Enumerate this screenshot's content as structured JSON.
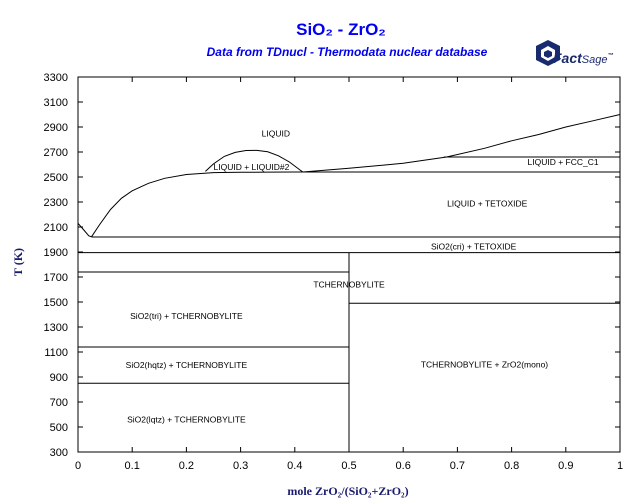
{
  "header": {
    "title": "SiO₂ - ZrO₂",
    "subtitle": "Data from TDnucl - Thermodata nuclear database",
    "logo": {
      "fact": "Fact",
      "sage": "Sage",
      "tm": "™",
      "color": "#1a2a6e",
      "icon": "factsage-logo-icon"
    }
  },
  "colors": {
    "title": "#0000ee",
    "axis_title": "#1a1a6e",
    "lines": "#000000"
  },
  "chart_data": {
    "type": "line",
    "title": "SiO₂ - ZrO₂",
    "subtitle": "Data from TDnucl - Thermodata nuclear database",
    "xlabel": "mole ZrO₂/(SiO₂+ZrO₂)",
    "ylabel": "T (K)",
    "xlim": [
      0,
      1
    ],
    "ylim": [
      300,
      3300
    ],
    "x_ticks": [
      0,
      0.1,
      0.2,
      0.3,
      0.4,
      0.5,
      0.6,
      0.7,
      0.8,
      0.9,
      1
    ],
    "x_tick_labels": [
      "0",
      "0.1",
      "0.2",
      "0.3",
      "0.4",
      "0.5",
      "0.6",
      "0.7",
      "0.8",
      "0.9",
      "1"
    ],
    "y_ticks": [
      300,
      500,
      700,
      900,
      1100,
      1300,
      1500,
      1700,
      1900,
      2100,
      2300,
      2500,
      2700,
      2900,
      3100,
      3300
    ],
    "y_tick_labels": [
      "300",
      "500",
      "700",
      "900",
      "1100",
      "1300",
      "1500",
      "1700",
      "1900",
      "2100",
      "2300",
      "2500",
      "2700",
      "2900",
      "3100",
      "3300"
    ],
    "grid": false,
    "series": [
      {
        "x": [
          0,
          0.01,
          0.02,
          0.025
        ],
        "y": [
          2130,
          2080,
          2030,
          2022
        ]
      },
      {
        "x": [
          0.025,
          0.04,
          0.06,
          0.08,
          0.1,
          0.13,
          0.16,
          0.2,
          0.25,
          0.3,
          0.35,
          0.4,
          0.415
        ],
        "y": [
          2022,
          2120,
          2240,
          2330,
          2390,
          2450,
          2490,
          2520,
          2535,
          2538,
          2539,
          2540,
          2540
        ]
      },
      {
        "x": [
          0.235,
          0.25,
          0.27,
          0.29,
          0.31,
          0.33,
          0.35,
          0.37,
          0.39,
          0.41,
          0.415
        ],
        "y": [
          2545,
          2605,
          2665,
          2697,
          2712,
          2713,
          2702,
          2670,
          2620,
          2555,
          2540
        ]
      },
      {
        "x": [
          0.415,
          0.5,
          0.6,
          0.68,
          0.75,
          0.8,
          0.85,
          0.9,
          0.95,
          1.0
        ],
        "y": [
          2540,
          2570,
          2610,
          2660,
          2730,
          2790,
          2840,
          2900,
          2950,
          3000
        ]
      },
      {
        "x": [
          0.415,
          1
        ],
        "y": [
          2540,
          2540
        ]
      },
      {
        "x": [
          0.675,
          1
        ],
        "y": [
          2660,
          2660
        ]
      },
      {
        "x": [
          0.025,
          1
        ],
        "y": [
          2020,
          2020
        ]
      },
      {
        "x": [
          0,
          1
        ],
        "y": [
          1895,
          1895
        ]
      },
      {
        "x": [
          0,
          0.5
        ],
        "y": [
          1740,
          1740
        ]
      },
      {
        "x": [
          0,
          0.5
        ],
        "y": [
          1140,
          1140
        ]
      },
      {
        "x": [
          0,
          0.5
        ],
        "y": [
          850,
          850
        ]
      },
      {
        "x": [
          0.5,
          1
        ],
        "y": [
          1490,
          1490
        ]
      },
      {
        "x": [
          0.5,
          0.5
        ],
        "y": [
          300,
          1895
        ]
      }
    ],
    "annotations": [
      {
        "text": "LIQUID",
        "x": 0.365,
        "y": 2850
      },
      {
        "text": "LIQUID + LIQUID#2",
        "x": 0.32,
        "y": 2580
      },
      {
        "text": "LIQUID + FCC_C1",
        "x": 0.895,
        "y": 2620
      },
      {
        "text": "LIQUID + TETOXIDE",
        "x": 0.755,
        "y": 2290
      },
      {
        "text": "SiO2(cri) + TETOXIDE",
        "x": 0.73,
        "y": 1945
      },
      {
        "text": "TCHERNOBYLITE",
        "x": 0.5,
        "y": 1640
      },
      {
        "text": "SiO2(tri) + TCHERNOBYLITE",
        "x": 0.2,
        "y": 1390
      },
      {
        "text": "SiO2(hqtz) + TCHERNOBYLITE",
        "x": 0.2,
        "y": 995
      },
      {
        "text": "TCHERNOBYLITE + ZrO2(mono)",
        "x": 0.75,
        "y": 1000
      },
      {
        "text": "SiO2(lqtz) + TCHERNOBYLITE",
        "x": 0.2,
        "y": 560
      }
    ]
  }
}
